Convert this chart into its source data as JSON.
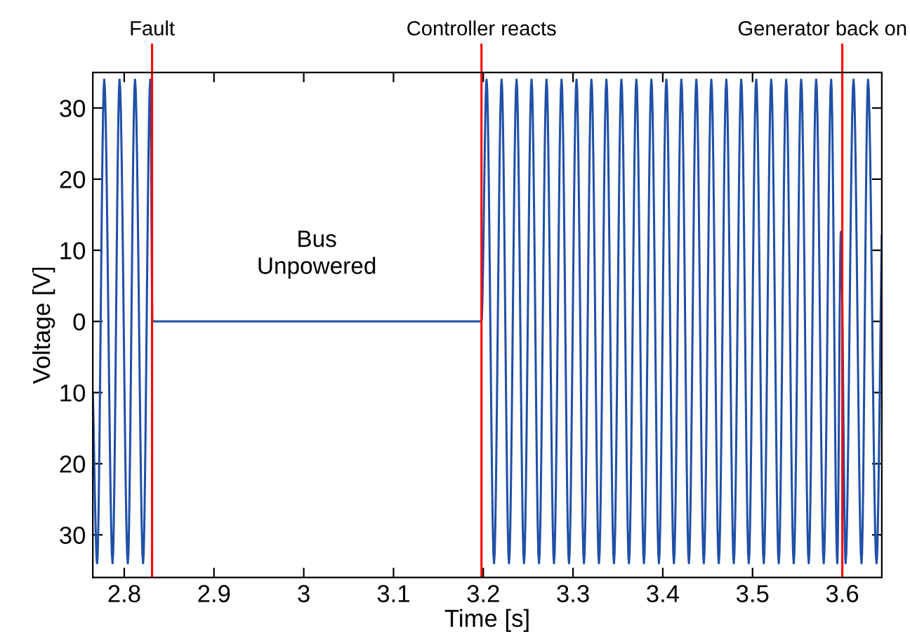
{
  "chart_data": {
    "type": "line",
    "xlabel": "Time [s]",
    "ylabel": "Voltage [V]",
    "xlim": [
      2.765,
      3.644
    ],
    "ylim": [
      -36,
      35
    ],
    "xticks": [
      2.8,
      2.9,
      3,
      3.1,
      3.2,
      3.3,
      3.4,
      3.5,
      3.6
    ],
    "yticks": [
      {
        "value": -30,
        "label": "30"
      },
      {
        "value": -20,
        "label": "20"
      },
      {
        "value": -10,
        "label": "10"
      },
      0,
      10,
      20,
      30
    ],
    "grid": false,
    "legend": false,
    "series": [
      {
        "color": "#2050a8",
        "x": [
          2.765,
          2.7698,
          2.7777,
          2.787,
          2.7948,
          2.804,
          2.812,
          2.821,
          2.829,
          2.8315,
          3.198,
          3.2037,
          3.212,
          3.2204,
          3.2287,
          3.2371,
          3.2454,
          3.2538,
          3.2621,
          3.2705,
          3.2788,
          3.2872,
          3.2955,
          3.3039,
          3.3122,
          3.3205,
          3.3289,
          3.3372,
          3.3456,
          3.3539,
          3.3623,
          3.3706,
          3.379,
          3.3873,
          3.3957,
          3.404,
          3.4124,
          3.4207,
          3.4291,
          3.4374,
          3.4457,
          3.4541,
          3.4624,
          3.4708,
          3.4791,
          3.4874,
          3.4958,
          3.5041,
          3.5125,
          3.5208,
          3.5292,
          3.5375,
          3.5459,
          3.5542,
          3.5626,
          3.5709,
          3.5793,
          3.5876,
          3.5944,
          3.5984,
          3.6037,
          3.6125,
          3.6214,
          3.6287,
          3.6381,
          3.644
        ],
        "values": [
          -10,
          -34,
          34,
          -34,
          34,
          -34,
          34,
          -34,
          34,
          0,
          0,
          34,
          -34,
          34,
          -34,
          34,
          -34,
          34,
          -34,
          34,
          -34,
          34,
          -34,
          34,
          -34,
          34,
          -34,
          34,
          -34,
          34,
          -34,
          34,
          -34,
          34,
          -34,
          34,
          -34,
          34,
          -34,
          34,
          -34,
          34,
          -34,
          34,
          -34,
          34,
          -34,
          34,
          -34,
          34,
          -34,
          34,
          -34,
          34,
          -34,
          34,
          -34,
          34,
          -34,
          12.6,
          -34,
          34,
          -34,
          34,
          -34,
          12
        ]
      }
    ],
    "ref_lines": [
      {
        "axis": "x",
        "value": 2.831,
        "label": "Fault",
        "color": "#ff0000"
      },
      {
        "axis": "x",
        "value": 3.198,
        "label": "Controller reacts",
        "color": "#ff0000"
      },
      {
        "axis": "x",
        "value": 3.6,
        "label": "Generator back on",
        "color": "#ff0000"
      }
    ],
    "annotations": [
      "Bus\nUnpowered"
    ]
  }
}
